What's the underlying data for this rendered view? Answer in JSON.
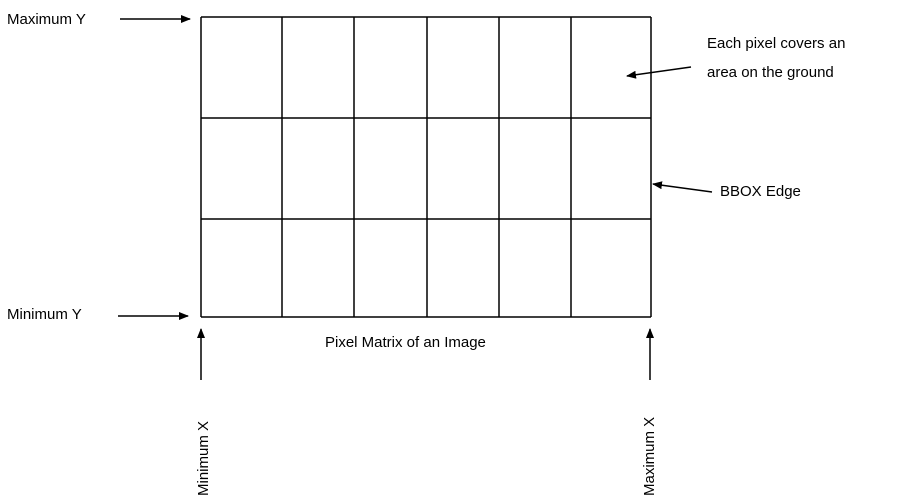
{
  "labels": {
    "max_y": "Maximum Y",
    "min_y": "Minimum Y",
    "min_x": "Minimum X",
    "max_x": "Maximum X",
    "caption": "Pixel Matrix of an Image",
    "pixel_note_line1": "Each pixel covers an",
    "pixel_note_line2": "area on the ground",
    "bbox_edge": "BBOX Edge"
  },
  "grid": {
    "rows": 3,
    "columns": 6
  },
  "colors": {
    "line": "#000000",
    "background": "#ffffff"
  }
}
